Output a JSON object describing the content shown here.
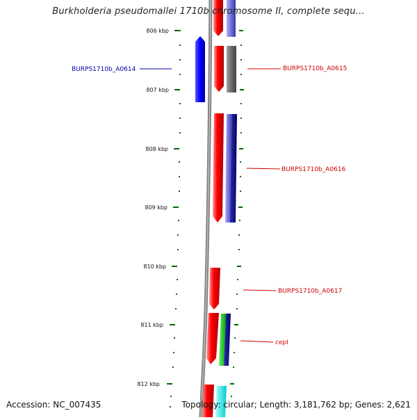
{
  "title": "Burkholderia pseudomallei 1710b chromosome II, complete sequ...",
  "accession": "Accession: NC_007435",
  "topology": "Topology: circular; Length: 3,181,762 bp; Genes: 2,621",
  "ticks": [
    "806 kbp",
    "807 kbp",
    "808 kbp",
    "809 kbp",
    "810 kbp",
    "811 kbp",
    "812 kbp"
  ],
  "gene_labels": {
    "a0614": "BURPS1710b_A0614",
    "a0615": "BURPS1710b_A0615",
    "a0616": "BURPS1710b_A0616",
    "a0617": "BURPS1710b_A0617",
    "cepl": "cepI"
  },
  "colors": {
    "forward_cds": "#ff0000",
    "reverse_cds": "#0000ff",
    "backbone": "#808080",
    "tick": "#006600",
    "label_forward": "#cc0000",
    "label_reverse": "#0000aa"
  }
}
